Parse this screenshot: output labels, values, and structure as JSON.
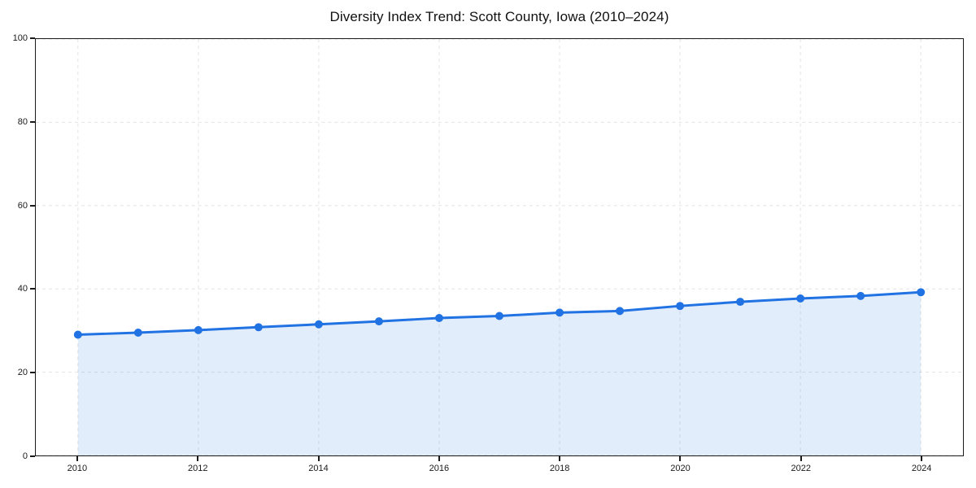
{
  "chart_data": {
    "type": "area",
    "title": "Diversity Index Trend: Scott County, Iowa (2010–2024)",
    "x": [
      2010,
      2011,
      2012,
      2013,
      2014,
      2015,
      2016,
      2017,
      2018,
      2019,
      2020,
      2021,
      2022,
      2023,
      2024
    ],
    "series": [
      {
        "name": "Diversity Index",
        "values": [
          29.0,
          29.5,
          30.1,
          30.8,
          31.5,
          32.2,
          33.0,
          33.5,
          34.3,
          34.7,
          35.9,
          36.9,
          37.7,
          38.3,
          39.2
        ]
      }
    ],
    "xlabel": "",
    "ylabel": "",
    "ylim": [
      0,
      100
    ],
    "xlim": [
      2009.3,
      2024.7
    ],
    "yticks": [
      0,
      20,
      40,
      60,
      80,
      100
    ],
    "xticks": [
      2010,
      2012,
      2014,
      2016,
      2018,
      2020,
      2022,
      2024
    ],
    "grid": {
      "visible": true,
      "style": "dashed",
      "color": "#e3e3e3"
    },
    "legend": "none",
    "marker_style": "circle",
    "colors": {
      "line": "#2172e2",
      "marker": "#2172e2",
      "fill": "#2172e2",
      "fill_opacity": 0.13,
      "spine": "#1a1a1a",
      "tick_label": "#1a1a1a",
      "title": "#111111"
    }
  }
}
